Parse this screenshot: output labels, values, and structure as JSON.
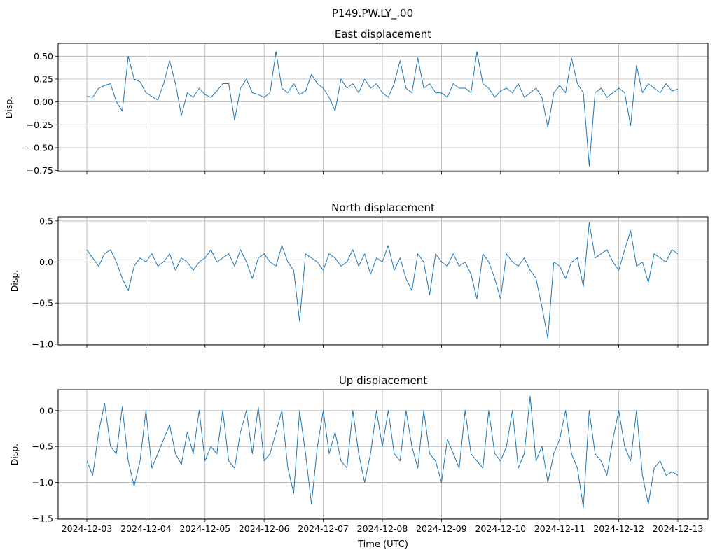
{
  "chart_data": {
    "type": "line",
    "title": "P149.PW.LY_.00",
    "xlabel": "Time (UTC)",
    "x_start": "2024-12-03",
    "x_end": "2024-12-13",
    "x_range_days": [
      0,
      10
    ],
    "x_tick_labels": [
      "2024-12-03",
      "2024-12-04",
      "2024-12-05",
      "2024-12-06",
      "2024-12-07",
      "2024-12-08",
      "2024-12-09",
      "2024-12-10",
      "2024-12-11",
      "2024-12-12",
      "2024-12-13"
    ],
    "line_color": "#1f77b4",
    "grid": true,
    "panels": [
      {
        "title": "East displacement",
        "ylabel": "Disp.",
        "ylim": [
          -0.76,
          0.64
        ],
        "yticks": [
          0.5,
          0.25,
          0.0,
          -0.25,
          -0.5,
          -0.75
        ],
        "ytick_labels": [
          "0.50",
          "0.25",
          "0.00",
          "−0.25",
          "−0.50",
          "−0.75"
        ],
        "values": [
          0.06,
          0.05,
          0.15,
          0.18,
          0.2,
          0.0,
          -0.1,
          0.5,
          0.25,
          0.22,
          0.1,
          0.06,
          0.02,
          0.2,
          0.45,
          0.2,
          -0.15,
          0.1,
          0.05,
          0.15,
          0.08,
          0.05,
          0.12,
          0.2,
          0.2,
          -0.2,
          0.15,
          0.25,
          0.1,
          0.08,
          0.05,
          0.1,
          0.55,
          0.15,
          0.1,
          0.2,
          0.08,
          0.12,
          0.3,
          0.2,
          0.15,
          0.05,
          -0.1,
          0.25,
          0.15,
          0.2,
          0.1,
          0.25,
          0.15,
          0.2,
          0.1,
          0.05,
          0.2,
          0.45,
          0.15,
          0.1,
          0.48,
          0.15,
          0.2,
          0.1,
          0.1,
          0.05,
          0.2,
          0.15,
          0.15,
          0.1,
          0.55,
          0.2,
          0.15,
          0.05,
          0.12,
          0.15,
          0.1,
          0.2,
          0.05,
          0.1,
          0.15,
          0.05,
          -0.28,
          0.1,
          0.18,
          0.1,
          0.48,
          0.2,
          0.1,
          -0.7,
          0.1,
          0.15,
          0.05,
          0.1,
          0.15,
          0.1,
          -0.26,
          0.4,
          0.1,
          0.2,
          0.15,
          0.1,
          0.2,
          0.12,
          0.14
        ]
      },
      {
        "title": "North displacement",
        "ylabel": "Disp.",
        "ylim": [
          -1.01,
          0.55
        ],
        "yticks": [
          0.5,
          0.0,
          -0.5,
          -1.0
        ],
        "ytick_labels": [
          "0.5",
          "0.0",
          "−0.5",
          "−1.0"
        ],
        "values": [
          0.15,
          0.05,
          -0.05,
          0.1,
          0.15,
          0.0,
          -0.2,
          -0.35,
          -0.05,
          0.05,
          0.0,
          0.1,
          -0.05,
          0.0,
          0.1,
          -0.1,
          0.05,
          0.0,
          -0.1,
          0.0,
          0.05,
          0.15,
          0.0,
          0.05,
          0.1,
          -0.05,
          0.15,
          0.0,
          -0.2,
          0.05,
          0.1,
          0.0,
          -0.05,
          0.2,
          0.0,
          -0.1,
          -0.72,
          0.1,
          0.05,
          0.0,
          -0.1,
          0.1,
          0.05,
          -0.05,
          0.0,
          0.15,
          -0.05,
          0.1,
          -0.15,
          0.05,
          0.0,
          0.2,
          -0.1,
          0.05,
          -0.2,
          -0.35,
          0.1,
          0.0,
          -0.4,
          0.1,
          0.0,
          -0.05,
          0.1,
          -0.05,
          0.0,
          -0.15,
          -0.45,
          0.1,
          0.0,
          -0.2,
          -0.45,
          0.1,
          0.0,
          -0.05,
          0.05,
          -0.1,
          -0.2,
          -0.55,
          -0.93,
          0.0,
          -0.05,
          -0.2,
          0.0,
          0.05,
          -0.3,
          0.48,
          0.05,
          0.1,
          0.15,
          0.0,
          -0.1,
          0.15,
          0.38,
          -0.05,
          0.0,
          -0.25,
          0.1,
          0.05,
          0.0,
          0.15,
          0.1
        ]
      },
      {
        "title": "Up displacement",
        "ylabel": "Disp.",
        "ylim": [
          -1.51,
          0.29
        ],
        "yticks": [
          0.0,
          -0.5,
          -1.0,
          -1.5
        ],
        "ytick_labels": [
          "0.0",
          "−0.5",
          "−1.0",
          "−1.5"
        ],
        "values": [
          -0.7,
          -0.9,
          -0.3,
          0.1,
          -0.5,
          -0.6,
          0.05,
          -0.7,
          -1.05,
          -0.7,
          0.0,
          -0.8,
          -0.6,
          -0.4,
          -0.2,
          -0.6,
          -0.75,
          -0.3,
          -0.6,
          0.0,
          -0.7,
          -0.5,
          -0.6,
          0.0,
          -0.7,
          -0.8,
          -0.3,
          0.0,
          -0.6,
          0.05,
          -0.7,
          -0.6,
          -0.3,
          0.0,
          -0.8,
          -1.15,
          0.0,
          -0.6,
          -1.3,
          -0.5,
          0.0,
          -0.6,
          -0.3,
          -0.7,
          -0.8,
          0.0,
          -0.6,
          -1.0,
          -0.6,
          0.0,
          -0.5,
          0.0,
          -0.6,
          -0.7,
          0.0,
          -0.5,
          -0.8,
          0.0,
          -0.6,
          -0.7,
          -1.0,
          -0.4,
          -0.6,
          -0.8,
          0.0,
          -0.6,
          -0.7,
          -0.8,
          0.0,
          -0.6,
          -0.7,
          -0.5,
          0.0,
          -0.8,
          -0.6,
          0.2,
          -0.7,
          -0.5,
          -1.0,
          -0.6,
          -0.4,
          0.0,
          -0.6,
          -0.8,
          -1.35,
          0.0,
          -0.6,
          -0.7,
          -0.9,
          -0.4,
          0.0,
          -0.5,
          -0.7,
          0.0,
          -0.9,
          -1.3,
          -0.8,
          -0.7,
          -0.9,
          -0.85,
          -0.9
        ]
      }
    ]
  }
}
